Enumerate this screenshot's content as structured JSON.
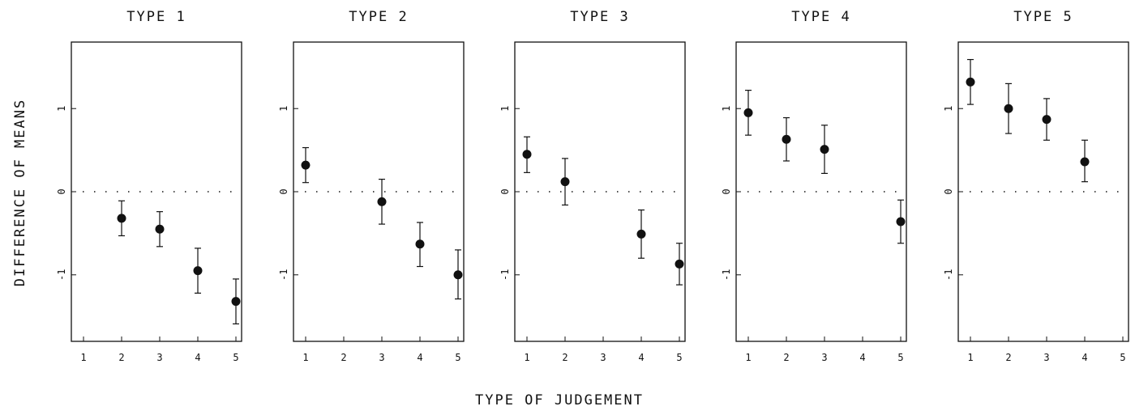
{
  "chart_data": {
    "type": "scatter",
    "ylabel": "DIFFERENCE OF MEANS",
    "xlabel": "TYPE OF JUDGEMENT",
    "x_ticks": [
      "1",
      "2",
      "3",
      "4",
      "5"
    ],
    "y_ticks": [
      1,
      0,
      -1
    ],
    "y_tick_labels": [
      "1",
      "0",
      "-1"
    ],
    "ylim": [
      -1.8,
      1.8
    ],
    "xlim": [
      0.55,
      5.35
    ],
    "reference_line": 0,
    "reference_line_style": "dotted",
    "panels": [
      {
        "title": "TYPE 1",
        "points": [
          {
            "x": 2,
            "y": -0.32,
            "lower": -0.53,
            "upper": -0.11
          },
          {
            "x": 3,
            "y": -0.45,
            "lower": -0.66,
            "upper": -0.24
          },
          {
            "x": 4,
            "y": -0.95,
            "lower": -1.22,
            "upper": -0.68
          },
          {
            "x": 5,
            "y": -1.32,
            "lower": -1.59,
            "upper": -1.05
          }
        ]
      },
      {
        "title": "TYPE 2",
        "points": [
          {
            "x": 1,
            "y": 0.32,
            "lower": 0.11,
            "upper": 0.53
          },
          {
            "x": 3,
            "y": -0.12,
            "lower": -0.39,
            "upper": 0.15
          },
          {
            "x": 4,
            "y": -0.63,
            "lower": -0.9,
            "upper": -0.37
          },
          {
            "x": 5,
            "y": -1.0,
            "lower": -1.29,
            "upper": -0.7
          }
        ]
      },
      {
        "title": "TYPE 3",
        "points": [
          {
            "x": 1,
            "y": 0.45,
            "lower": 0.23,
            "upper": 0.66
          },
          {
            "x": 2,
            "y": 0.12,
            "lower": -0.16,
            "upper": 0.4
          },
          {
            "x": 4,
            "y": -0.51,
            "lower": -0.8,
            "upper": -0.22
          },
          {
            "x": 5,
            "y": -0.87,
            "lower": -1.12,
            "upper": -0.62
          }
        ]
      },
      {
        "title": "TYPE 4",
        "points": [
          {
            "x": 1,
            "y": 0.95,
            "lower": 0.68,
            "upper": 1.22
          },
          {
            "x": 2,
            "y": 0.63,
            "lower": 0.37,
            "upper": 0.89
          },
          {
            "x": 3,
            "y": 0.51,
            "lower": 0.22,
            "upper": 0.8
          },
          {
            "x": 5,
            "y": -0.36,
            "lower": -0.62,
            "upper": -0.1
          }
        ]
      },
      {
        "title": "TYPE 5",
        "points": [
          {
            "x": 1,
            "y": 1.32,
            "lower": 1.05,
            "upper": 1.59
          },
          {
            "x": 2,
            "y": 1.0,
            "lower": 0.7,
            "upper": 1.3
          },
          {
            "x": 3,
            "y": 0.87,
            "lower": 0.62,
            "upper": 1.12
          },
          {
            "x": 4,
            "y": 0.36,
            "lower": 0.12,
            "upper": 0.62
          }
        ]
      }
    ]
  }
}
